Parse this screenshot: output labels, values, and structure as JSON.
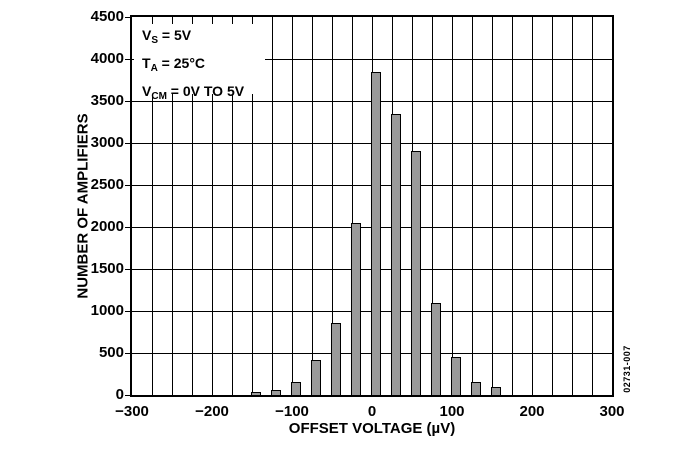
{
  "figure": {
    "watermark": "02731-007",
    "background": "#ffffff"
  },
  "chart_data": {
    "type": "bar",
    "title": "",
    "xlabel": "OFFSET VOLTAGE (µV)",
    "ylabel": "NUMBER OF AMPLIFIERS",
    "xlim": [
      -300,
      300
    ],
    "ylim": [
      0,
      4500
    ],
    "x_grid_step": 25,
    "y_grid_step": 500,
    "grid": true,
    "bin_width": 25,
    "categories": [
      -150,
      -125,
      -100,
      -75,
      -50,
      -25,
      0,
      25,
      50,
      75,
      100,
      125,
      150
    ],
    "values": [
      35,
      60,
      150,
      420,
      860,
      2050,
      3850,
      3350,
      2900,
      1100,
      450,
      150,
      90
    ],
    "bar_color": "#9a9a9a",
    "bar_border_color": "#000000",
    "x_ticks": [
      {
        "v": -300,
        "label": "−300"
      },
      {
        "v": -200,
        "label": "−200"
      },
      {
        "v": -100,
        "label": "−100"
      },
      {
        "v": 0,
        "label": "0"
      },
      {
        "v": 100,
        "label": "100"
      },
      {
        "v": 200,
        "label": "200"
      },
      {
        "v": 300,
        "label": "300"
      }
    ],
    "y_ticks": [
      {
        "v": 0,
        "label": "0"
      },
      {
        "v": 500,
        "label": "500"
      },
      {
        "v": 1000,
        "label": "1000"
      },
      {
        "v": 1500,
        "label": "1500"
      },
      {
        "v": 2000,
        "label": "2000"
      },
      {
        "v": 2500,
        "label": "2500"
      },
      {
        "v": 3000,
        "label": "3000"
      },
      {
        "v": 3500,
        "label": "3500"
      },
      {
        "v": 4000,
        "label": "4000"
      },
      {
        "v": 4500,
        "label": "4500"
      }
    ],
    "annotations": [
      "V|S| = 5V",
      "T|A| = 25°C",
      "V|CM| = 0V TO 5V"
    ],
    "legend": null
  }
}
